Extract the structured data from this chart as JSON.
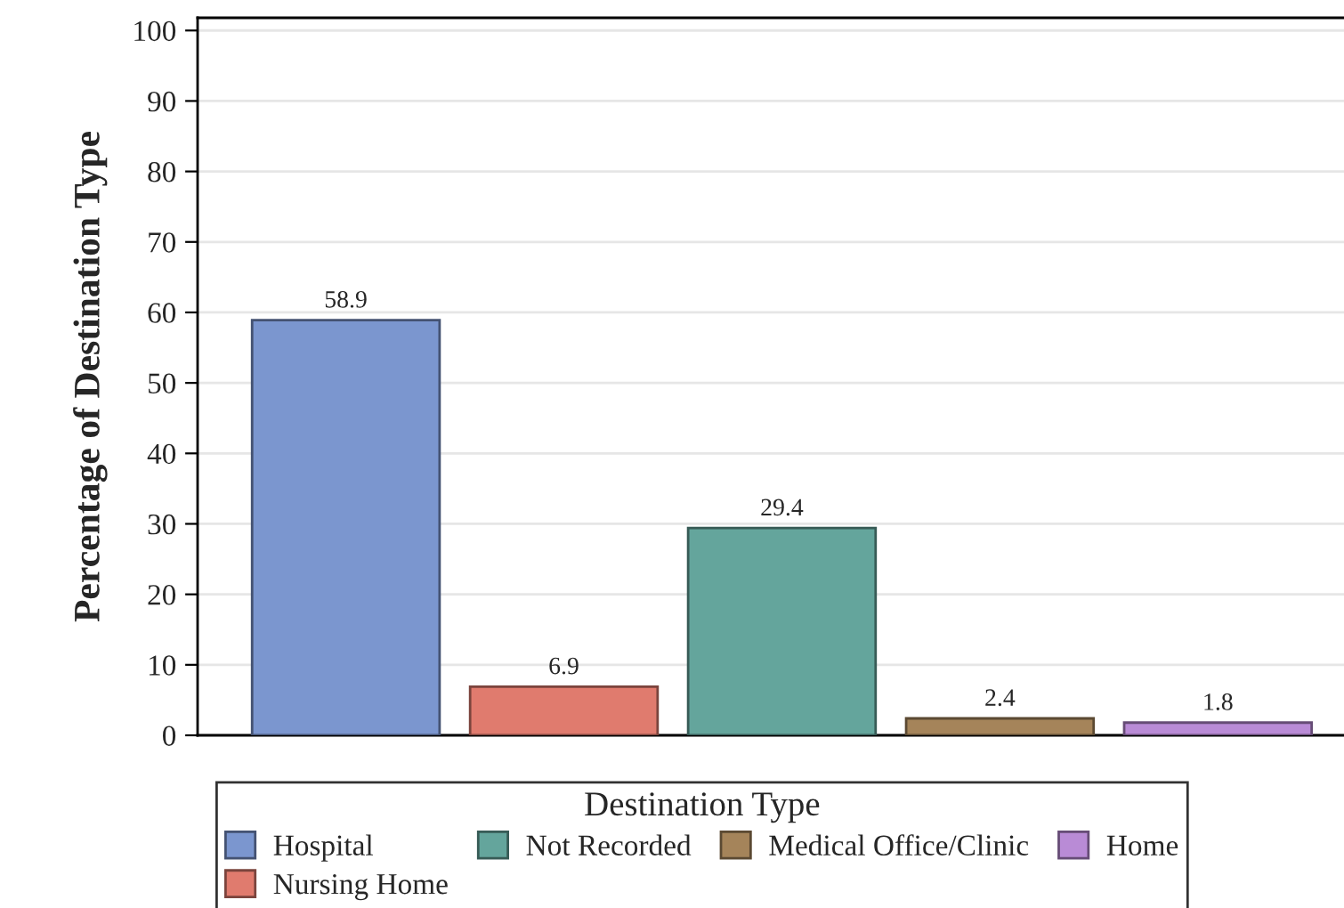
{
  "chart_data": {
    "type": "bar",
    "categories": [
      null
    ],
    "ylabel": "Percentage of Destination Type",
    "legend_title": "Destination Type",
    "series": [
      {
        "name": "Hospital",
        "color": "#7b96cf",
        "values": [
          58.9
        ]
      },
      {
        "name": "Nursing Home",
        "color": "#e07b6e",
        "values": [
          6.9
        ]
      },
      {
        "name": "Not Recorded",
        "color": "#64a59c",
        "values": [
          29.4
        ]
      },
      {
        "name": "Medical Office/Clinic",
        "color": "#a5845a",
        "values": [
          2.4
        ]
      },
      {
        "name": "Home",
        "color": "#b98bd6",
        "values": [
          1.8
        ]
      }
    ],
    "ylim": [
      0,
      101.8
    ],
    "yticks": [
      0,
      10,
      20,
      30,
      40,
      50,
      60,
      70,
      80,
      90,
      100
    ],
    "grid": "y",
    "legend": "bottom",
    "data_labels": true
  }
}
